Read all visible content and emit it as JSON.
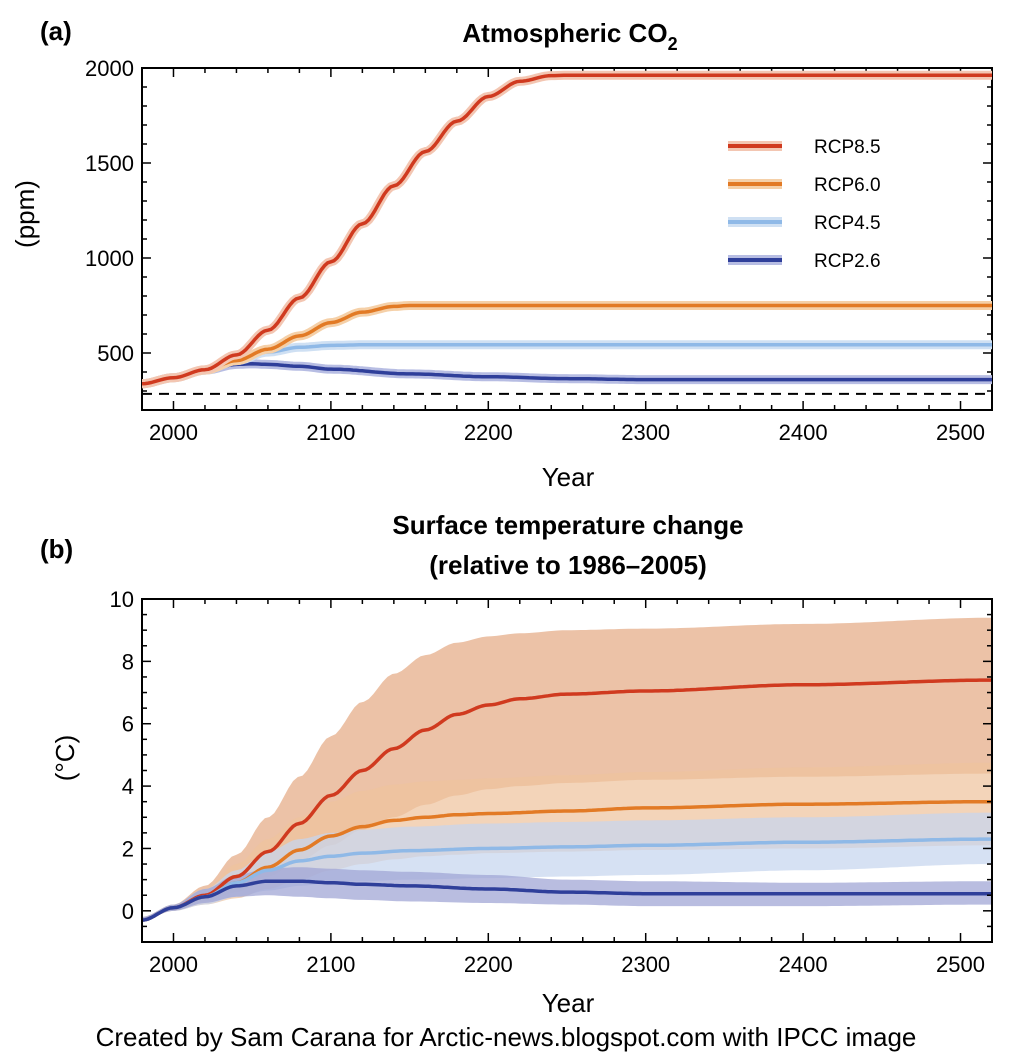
{
  "colors": {
    "rcp85": "#d03a1f",
    "rcp60": "#e27a25",
    "rcp45": "#8fb9e7",
    "rcp26": "#2f3f9a",
    "band_rcp85": "#e5aa85",
    "band_rcp60": "#eec49e",
    "band_rcp45": "#c6d5ee",
    "band_rcp26": "#9ea4d4",
    "band_rcp85_co2": "#f3c6b2",
    "band_rcp60_co2": "#f5d0a8",
    "band_rcp45_co2": "#cfe0f3",
    "band_rcp26_co2": "#b7bde3"
  },
  "footer": {
    "credit": "Created by Sam Carana for Arctic-news.blogspot.com with IPCC image"
  },
  "chart_data": [
    {
      "panel_label": "(a)",
      "type": "line",
      "title_main": "Atmospheric CO",
      "title_sub": "2",
      "xlabel": "Year",
      "ylabel": "(ppm)",
      "xlim": [
        1980,
        2520
      ],
      "ylim": [
        200,
        2000
      ],
      "xticks": [
        2000,
        2100,
        2200,
        2300,
        2400,
        2500
      ],
      "yticks": [
        500,
        1000,
        1500,
        2000
      ],
      "reference_line": {
        "y": 285,
        "style": "dashed"
      },
      "legend_position": "right",
      "series": [
        {
          "name": "RCP8.5",
          "color_key": "rcp85",
          "x": [
            1980,
            2000,
            2020,
            2040,
            2060,
            2080,
            2100,
            2120,
            2140,
            2160,
            2180,
            2200,
            2220,
            2240,
            2250,
            2300,
            2400,
            2520
          ],
          "y": [
            338,
            370,
            412,
            490,
            620,
            790,
            980,
            1180,
            1380,
            1560,
            1720,
            1850,
            1930,
            1960,
            1962,
            1962,
            1962,
            1962
          ]
        },
        {
          "name": "RCP6.0",
          "color_key": "rcp60",
          "x": [
            1980,
            2000,
            2020,
            2040,
            2060,
            2080,
            2100,
            2120,
            2140,
            2150,
            2200,
            2300,
            2400,
            2520
          ],
          "y": [
            338,
            370,
            410,
            460,
            520,
            590,
            660,
            715,
            745,
            750,
            750,
            750,
            750,
            750
          ]
        },
        {
          "name": "RCP4.5",
          "color_key": "rcp45",
          "x": [
            1980,
            2000,
            2020,
            2040,
            2060,
            2080,
            2100,
            2120,
            2150,
            2200,
            2300,
            2400,
            2520
          ],
          "y": [
            338,
            370,
            410,
            460,
            505,
            530,
            540,
            543,
            543,
            543,
            543,
            543,
            543
          ]
        },
        {
          "name": "RCP2.6",
          "color_key": "rcp26",
          "x": [
            1980,
            2000,
            2020,
            2040,
            2050,
            2060,
            2080,
            2100,
            2150,
            2200,
            2250,
            2300,
            2400,
            2520
          ],
          "y": [
            338,
            370,
            410,
            440,
            443,
            440,
            430,
            415,
            390,
            375,
            365,
            360,
            360,
            360
          ]
        }
      ]
    },
    {
      "panel_label": "(b)",
      "type": "area",
      "title_line1": "Surface temperature change",
      "title_line2": "(relative to 1986–2005)",
      "xlabel": "Year",
      "ylabel": "(°C)",
      "xlim": [
        1980,
        2520
      ],
      "ylim": [
        -1,
        10
      ],
      "xticks": [
        2000,
        2100,
        2200,
        2300,
        2400,
        2500
      ],
      "yticks": [
        0,
        2,
        4,
        6,
        8,
        10
      ],
      "series": [
        {
          "name": "RCP8.5",
          "color_key": "rcp85",
          "band_key": "band_rcp85",
          "x": [
            1980,
            2000,
            2020,
            2040,
            2060,
            2080,
            2100,
            2120,
            2140,
            2160,
            2180,
            2200,
            2220,
            2250,
            2300,
            2400,
            2520
          ],
          "mean": [
            -0.3,
            0.1,
            0.5,
            1.1,
            1.9,
            2.8,
            3.7,
            4.5,
            5.2,
            5.8,
            6.3,
            6.6,
            6.8,
            6.95,
            7.05,
            7.25,
            7.4
          ],
          "low": [
            -0.3,
            0.0,
            0.3,
            0.6,
            1.1,
            1.6,
            2.1,
            2.6,
            3.0,
            3.4,
            3.7,
            3.9,
            4.0,
            4.1,
            4.2,
            4.3,
            4.4
          ],
          "high": [
            -0.2,
            0.2,
            0.8,
            1.8,
            3.0,
            4.3,
            5.6,
            6.7,
            7.6,
            8.2,
            8.6,
            8.8,
            8.9,
            9.0,
            9.05,
            9.2,
            9.4
          ]
        },
        {
          "name": "RCP6.0",
          "color_key": "rcp60",
          "band_key": "band_rcp60",
          "x": [
            1980,
            2000,
            2020,
            2040,
            2060,
            2080,
            2100,
            2120,
            2140,
            2160,
            2180,
            2200,
            2250,
            2300,
            2400,
            2520
          ],
          "mean": [
            -0.3,
            0.1,
            0.45,
            0.9,
            1.4,
            1.95,
            2.4,
            2.7,
            2.9,
            3.0,
            3.08,
            3.12,
            3.2,
            3.3,
            3.42,
            3.5
          ],
          "low": [
            -0.3,
            0.0,
            0.2,
            0.4,
            0.7,
            1.0,
            1.3,
            1.5,
            1.65,
            1.75,
            1.8,
            1.85,
            1.9,
            1.95,
            2.0,
            2.1
          ],
          "high": [
            -0.2,
            0.2,
            0.7,
            1.5,
            2.3,
            3.0,
            3.5,
            3.85,
            4.05,
            4.15,
            4.2,
            4.25,
            4.35,
            4.45,
            4.6,
            4.75
          ]
        },
        {
          "name": "RCP4.5",
          "color_key": "rcp45",
          "band_key": "band_rcp45",
          "x": [
            1980,
            2000,
            2020,
            2040,
            2060,
            2080,
            2100,
            2120,
            2150,
            2200,
            2250,
            2300,
            2400,
            2520
          ],
          "mean": [
            -0.3,
            0.1,
            0.45,
            0.9,
            1.3,
            1.6,
            1.75,
            1.85,
            1.93,
            2.0,
            2.05,
            2.1,
            2.2,
            2.3
          ],
          "low": [
            -0.3,
            0.0,
            0.2,
            0.45,
            0.65,
            0.8,
            0.9,
            0.95,
            1.0,
            1.05,
            1.1,
            1.15,
            1.3,
            1.5
          ],
          "high": [
            -0.2,
            0.2,
            0.7,
            1.3,
            1.9,
            2.3,
            2.5,
            2.6,
            2.7,
            2.8,
            2.85,
            2.9,
            3.0,
            3.15
          ]
        },
        {
          "name": "RCP2.6",
          "color_key": "rcp26",
          "band_key": "band_rcp26",
          "x": [
            1980,
            2000,
            2020,
            2040,
            2060,
            2080,
            2100,
            2120,
            2150,
            2200,
            2250,
            2300,
            2400,
            2520
          ],
          "mean": [
            -0.3,
            0.1,
            0.45,
            0.8,
            0.95,
            0.95,
            0.9,
            0.85,
            0.8,
            0.7,
            0.6,
            0.55,
            0.55,
            0.55
          ],
          "low": [
            -0.3,
            0.0,
            0.25,
            0.45,
            0.5,
            0.45,
            0.4,
            0.35,
            0.3,
            0.25,
            0.2,
            0.15,
            0.15,
            0.2
          ],
          "high": [
            -0.2,
            0.2,
            0.7,
            1.15,
            1.35,
            1.4,
            1.35,
            1.3,
            1.25,
            1.15,
            1.0,
            0.95,
            0.9,
            0.95
          ]
        }
      ]
    }
  ]
}
